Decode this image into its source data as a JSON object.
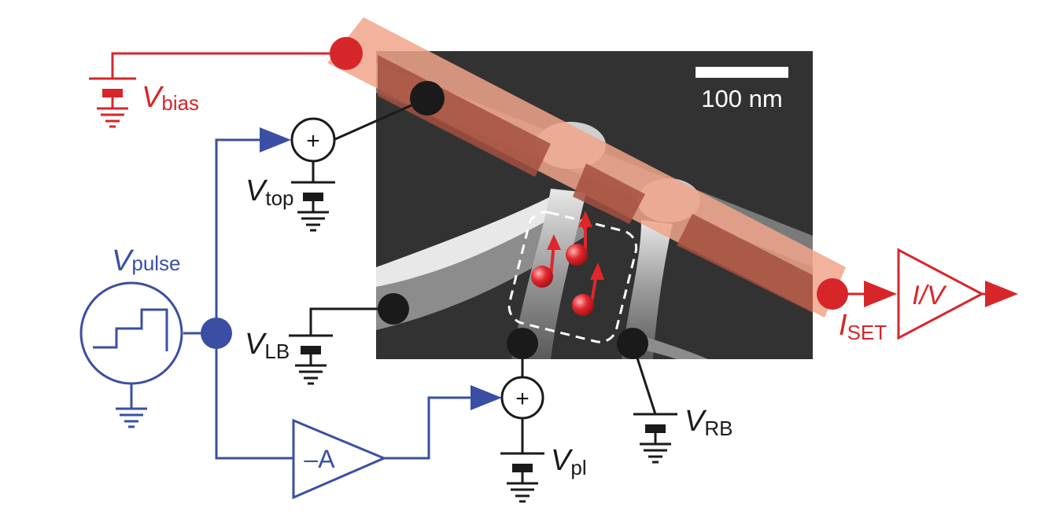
{
  "colors": {
    "red": "#d7262a",
    "blue": "#3a4fa3",
    "black": "#1a1a1a",
    "sem_background": "#2b2b2b",
    "electrode_overlay": "#e46a40",
    "electron": "#e0262c"
  },
  "scale_bar": {
    "label": "100 nm"
  },
  "labels": {
    "bias": {
      "main": "V",
      "sub": "bias"
    },
    "top": {
      "main": "V",
      "sub": "top"
    },
    "pulse": {
      "main": "V",
      "sub": "pulse"
    },
    "lb": {
      "main": "V",
      "sub": "LB"
    },
    "rb": {
      "main": "V",
      "sub": "RB"
    },
    "pl": {
      "main": "V",
      "sub": "pl"
    },
    "set": {
      "main": "I",
      "sub": "SET"
    },
    "iv_box": "I/V",
    "amplifier": "–A",
    "sum_symbol": "+"
  },
  "icons": [
    "battery-ground-icon",
    "summing-node-icon",
    "pulse-source-icon",
    "amplifier-icon",
    "arrow-icon",
    "spin-electron-icon"
  ]
}
